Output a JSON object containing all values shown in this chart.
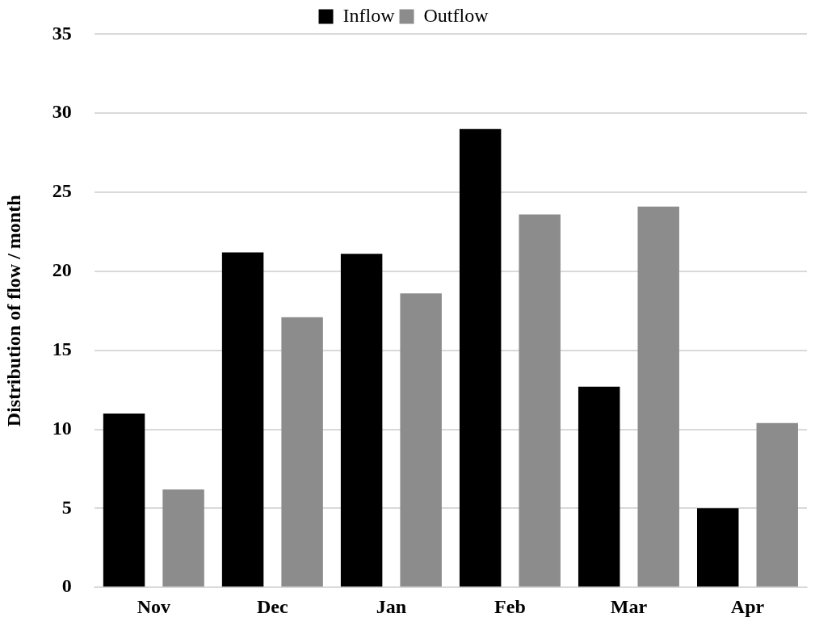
{
  "chart_data": {
    "type": "bar",
    "ylabel": "Distribution of flow / month",
    "categories": [
      "Nov",
      "Dec",
      "Jan",
      "Feb",
      "Mar",
      "Apr"
    ],
    "series": [
      {
        "name": "Inflow",
        "color": "#000000",
        "values": [
          11.0,
          21.2,
          21.1,
          29.0,
          12.7,
          5.0
        ]
      },
      {
        "name": "Outflow",
        "color": "#8c8c8c",
        "values": [
          6.2,
          17.1,
          18.6,
          23.6,
          24.1,
          10.4
        ]
      }
    ],
    "ylim": [
      0,
      35
    ],
    "yticks": [
      0,
      5,
      10,
      15,
      20,
      25,
      30,
      35
    ],
    "grid": "y",
    "legend": "top"
  }
}
